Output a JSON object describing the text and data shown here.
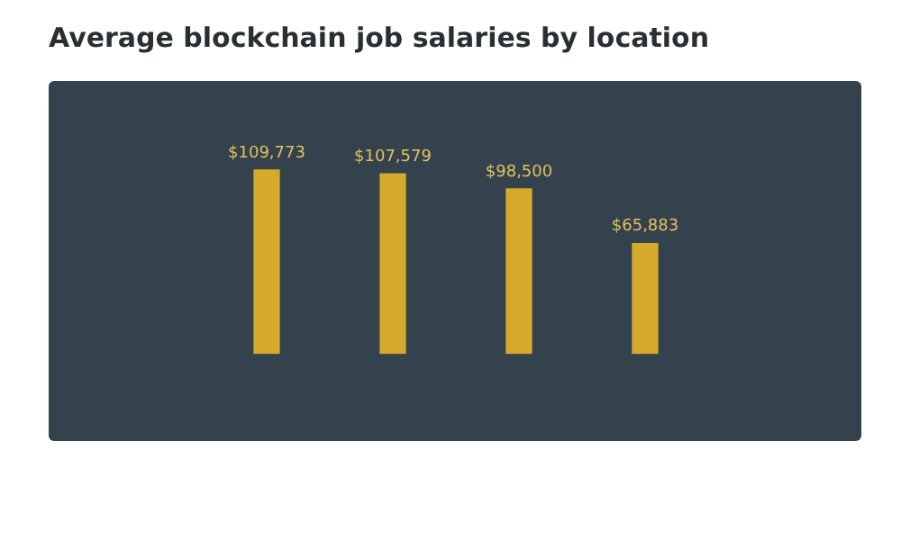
{
  "chart_data": {
    "type": "bar",
    "title": "Average blockchain job salaries by location",
    "categories": [
      null,
      null,
      null,
      null
    ],
    "values": [
      109773,
      107579,
      98500,
      65883
    ],
    "value_labels": [
      "$109,773",
      "$107,579",
      "$98,500",
      "$65,883"
    ],
    "color": "#d6aa2c"
  }
}
